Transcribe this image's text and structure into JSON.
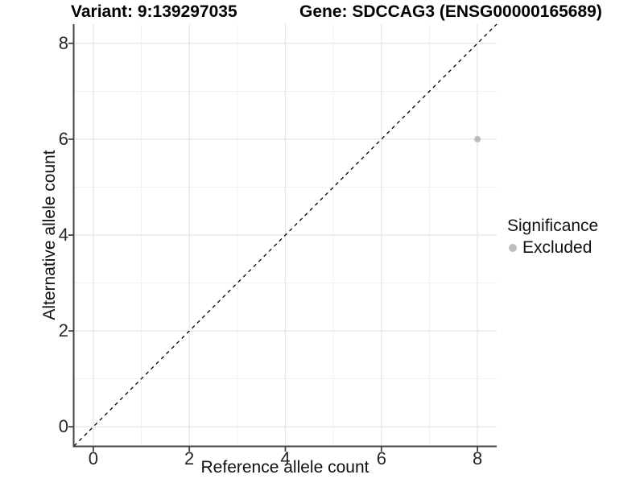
{
  "chart_data": {
    "type": "scatter",
    "titles": [
      "Variant: 9:139297035",
      "Gene: SDCCAG3 (ENSG00000165689)"
    ],
    "xlabel": "Reference allele count",
    "ylabel": "Alternative allele count",
    "xlim": [
      -0.4,
      8.4
    ],
    "ylim": [
      -0.4,
      8.4
    ],
    "x_ticks": [
      0,
      2,
      4,
      6,
      8
    ],
    "y_ticks": [
      0,
      2,
      4,
      6,
      8
    ],
    "x_minor_ticks": [
      1,
      3,
      5,
      7
    ],
    "y_minor_ticks": [
      1,
      3,
      5,
      7
    ],
    "grid": "major+minor",
    "series": [
      {
        "name": "Excluded",
        "marker": "circle",
        "color": "#bdbdbd",
        "points": [
          {
            "x": 8,
            "y": 6
          }
        ]
      }
    ],
    "diagonal": {
      "type": "identity-line",
      "style": "dashed",
      "from": [
        -0.4,
        -0.4
      ],
      "to": [
        8.4,
        8.4
      ],
      "color": "#000000"
    },
    "legend": {
      "title": "Significance",
      "position": "right",
      "items": [
        {
          "label": "Excluded",
          "color": "#bdbdbd",
          "marker": "circle"
        }
      ]
    },
    "colors": {
      "grid_major": "#e4e4e4",
      "grid_minor": "#f1f1f1",
      "axis_line": "#444444",
      "tick_mark": "#444444",
      "tick_label": "#262626",
      "point": "#bdbdbd",
      "diagonal": "#000000"
    }
  }
}
